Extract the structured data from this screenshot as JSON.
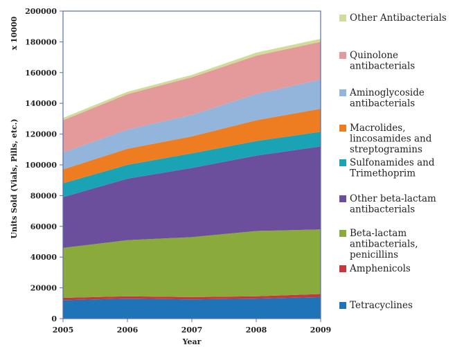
{
  "chart_data": {
    "type": "area",
    "stacked": true,
    "x": [
      2005,
      2006,
      2007,
      2008,
      2009
    ],
    "xlabel": "Year",
    "ylabel": "Units Sold (Vials, Pills, etc.)",
    "y_multiplier": "x 10000",
    "ylim": [
      0,
      200000
    ],
    "yticks": [
      "0",
      "20000",
      "40000",
      "60000",
      "80000",
      "100000",
      "120000",
      "140000",
      "160000",
      "180000",
      "200000"
    ],
    "xticks": [
      "2005",
      "2006",
      "2007",
      "2008",
      "2009"
    ],
    "grid": false,
    "legend_position": "right",
    "series": [
      {
        "name": "Tetracyclines",
        "color": "#1f74b8",
        "values": [
          12000,
          13000,
          12500,
          13000,
          14000
        ]
      },
      {
        "name": "Amphenicols",
        "color": "#c8373a",
        "values": [
          1500,
          1500,
          1500,
          1500,
          2000
        ]
      },
      {
        "name": "Beta-lactam antibacterials, penicillins",
        "color": "#8aaa3c",
        "values": [
          32500,
          36500,
          39000,
          42500,
          42000
        ]
      },
      {
        "name": "Other beta-lactam antibacterials",
        "color": "#6b4e9c",
        "values": [
          33000,
          40000,
          45000,
          49000,
          54000
        ]
      },
      {
        "name": "Sulfonamides and Trimethoprim",
        "color": "#1aa3b5",
        "values": [
          9000,
          9000,
          9500,
          9500,
          9500
        ]
      },
      {
        "name": "Macrolides, lincosamides and streptogramins",
        "color": "#ee7d22",
        "values": [
          9000,
          10500,
          11000,
          13500,
          15000
        ]
      },
      {
        "name": "Aminoglycoside antibacterials",
        "color": "#93b4db",
        "values": [
          11000,
          12500,
          14000,
          17000,
          19000
        ]
      },
      {
        "name": "Quinolone antibacterials",
        "color": "#e4999b",
        "values": [
          21000,
          23000,
          24500,
          25000,
          24500
        ]
      },
      {
        "name": "Other Antibacterials",
        "color": "#cfdc9a",
        "values": [
          1500,
          1500,
          1500,
          2000,
          2000
        ]
      }
    ],
    "legend": [
      {
        "lines": [
          "Other Antibacterials"
        ],
        "color": "#cfdc9a"
      },
      {
        "lines": [
          "Quinolone",
          "antibacterials"
        ],
        "color": "#e4999b"
      },
      {
        "lines": [
          "Aminoglycoside",
          "antibacterials"
        ],
        "color": "#93b4db"
      },
      {
        "lines": [
          "Macrolides,",
          "lincosamides and",
          "streptogramins"
        ],
        "color": "#ee7d22"
      },
      {
        "lines": [
          "Sulfonamides and",
          "Trimethoprim"
        ],
        "color": "#1aa3b5"
      },
      {
        "lines": [
          "Other beta-lactam",
          "antibacterials"
        ],
        "color": "#6b4e9c"
      },
      {
        "lines": [
          "Beta-lactam",
          "antibacterials,",
          "penicillins"
        ],
        "color": "#8aaa3c"
      },
      {
        "lines": [
          "Amphenicols"
        ],
        "color": "#c8373a"
      },
      {
        "lines": [
          "Tetracyclines"
        ],
        "color": "#1f74b8"
      }
    ]
  }
}
